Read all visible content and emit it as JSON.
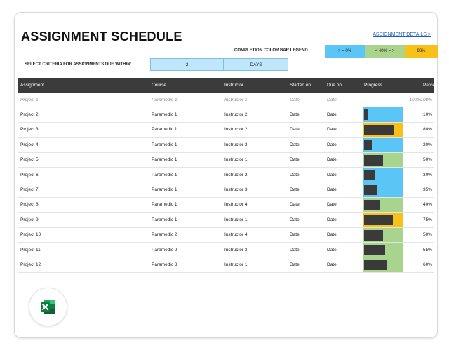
{
  "title": "ASSIGNMENT SCHEDULE",
  "details_link": "ASSIGNMENT DETAILS >",
  "legend": {
    "label": "COMPLETION COLOR BAR LEGEND",
    "items": [
      {
        "text": "> = 0%",
        "color": "#5bc6f6"
      },
      {
        "text": "< 40% = >",
        "color": "#a9d48d"
      },
      {
        "text": "99%",
        "color": "#f7c11a"
      }
    ]
  },
  "criteria": {
    "label": "SELECT CRITERIA FOR ASSIGNMENTS DUE WITHIN:",
    "value": "2",
    "unit": "DAYS"
  },
  "table": {
    "headers": {
      "assignment": "Assignment",
      "course": "Course",
      "instructor": "Instructor",
      "started": "Started on",
      "due": "Due on",
      "progress": "Progress",
      "percent": "Percent"
    },
    "sample_row": {
      "assignment": "Project 1",
      "course": "Paramedic 1",
      "instructor": "Instructor 1",
      "started": "Date",
      "due": "Date",
      "progress": "100%",
      "percent": "100%"
    },
    "rows": [
      {
        "assignment": "Project 2",
        "course": "Paramedic 1",
        "instructor": "Instructor 2",
        "started": "Date",
        "due": "Date",
        "percent": "10%",
        "progress": 0.1
      },
      {
        "assignment": "Project 3",
        "course": "Paramedic 1",
        "instructor": "Instructor 2",
        "started": "Date",
        "due": "Date",
        "percent": "80%",
        "progress": 0.8
      },
      {
        "assignment": "Project 4",
        "course": "Paramedic 1",
        "instructor": "Instructor 3",
        "started": "Date",
        "due": "Date",
        "percent": "20%",
        "progress": 0.2
      },
      {
        "assignment": "Project 5",
        "course": "Paramedic 1",
        "instructor": "Instructor 1",
        "started": "Date",
        "due": "Date",
        "percent": "50%",
        "progress": 0.5
      },
      {
        "assignment": "Project 6",
        "course": "Paramedic 1",
        "instructor": "Instructor 2",
        "started": "Date",
        "due": "Date",
        "percent": "30%",
        "progress": 0.3
      },
      {
        "assignment": "Project 7",
        "course": "Paramedic 1",
        "instructor": "Instructor 3",
        "started": "Date",
        "due": "Date",
        "percent": "35%",
        "progress": 0.35
      },
      {
        "assignment": "Project 8",
        "course": "Paramedic 1",
        "instructor": "Instructor 4",
        "started": "Date",
        "due": "Date",
        "percent": "40%",
        "progress": 0.4
      },
      {
        "assignment": "Project 9",
        "course": "Paramedic 1",
        "instructor": "Instructor 1",
        "started": "Date",
        "due": "Date",
        "percent": "75%",
        "progress": 0.75
      },
      {
        "assignment": "Project 10",
        "course": "Paramedic 2",
        "instructor": "Instructor 4",
        "started": "Date",
        "due": "Date",
        "percent": "50%",
        "progress": 0.5
      },
      {
        "assignment": "Project 11",
        "course": "Paramedic 2",
        "instructor": "Instructor 3",
        "started": "Date",
        "due": "Date",
        "percent": "55%",
        "progress": 0.55
      },
      {
        "assignment": "Project 12",
        "course": "Paramedic 3",
        "instructor": "Instructor 1",
        "started": "Date",
        "due": "Date",
        "percent": "60%",
        "progress": 0.6
      }
    ]
  },
  "icons": {
    "app_badge": "excel-icon"
  }
}
